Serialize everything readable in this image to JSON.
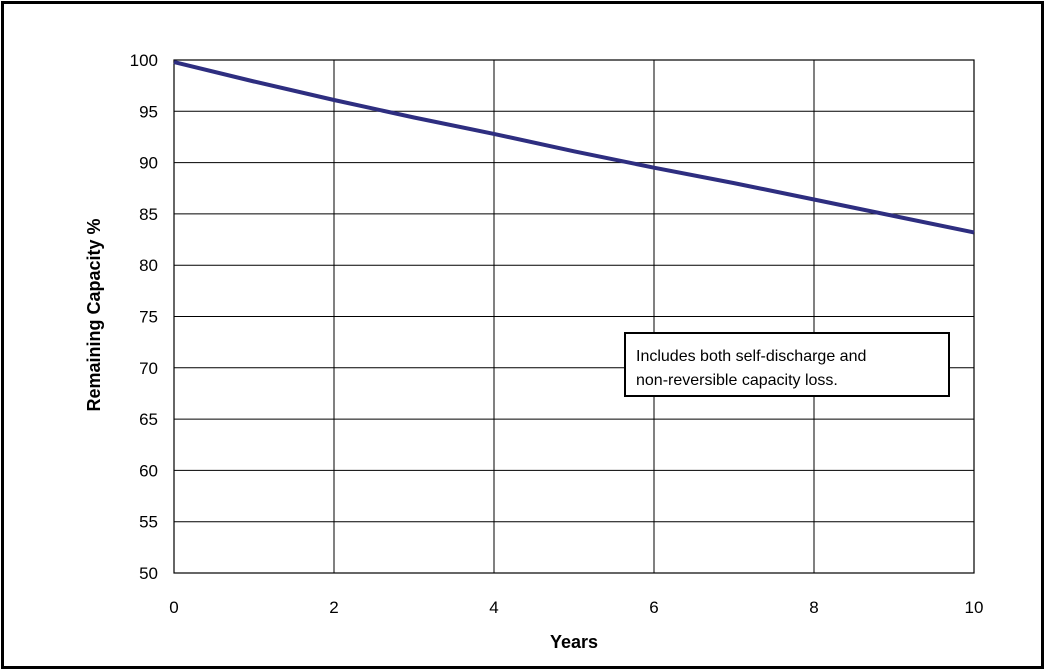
{
  "chart_data": {
    "type": "line",
    "title": "",
    "xlabel": "Years",
    "ylabel": "Remaining Capacity %",
    "xlim": [
      0,
      10
    ],
    "ylim": [
      50,
      100
    ],
    "x_ticks": [
      "0",
      "2",
      "4",
      "6",
      "8",
      "10"
    ],
    "y_ticks": [
      "50",
      "55",
      "60",
      "65",
      "70",
      "75",
      "80",
      "85",
      "90",
      "95",
      "100"
    ],
    "grid": true,
    "series": [
      {
        "color": "#2e2e80",
        "x": [
          0,
          1,
          2,
          3,
          4,
          5,
          6,
          7,
          8,
          9,
          10
        ],
        "y": [
          99.8,
          97.9,
          96.1,
          94.4,
          92.8,
          91.1,
          89.5,
          88.0,
          86.4,
          84.8,
          83.2
        ]
      }
    ],
    "annotation": {
      "line1": "Includes both self-discharge and",
      "line2": "non-reversible capacity loss."
    }
  }
}
